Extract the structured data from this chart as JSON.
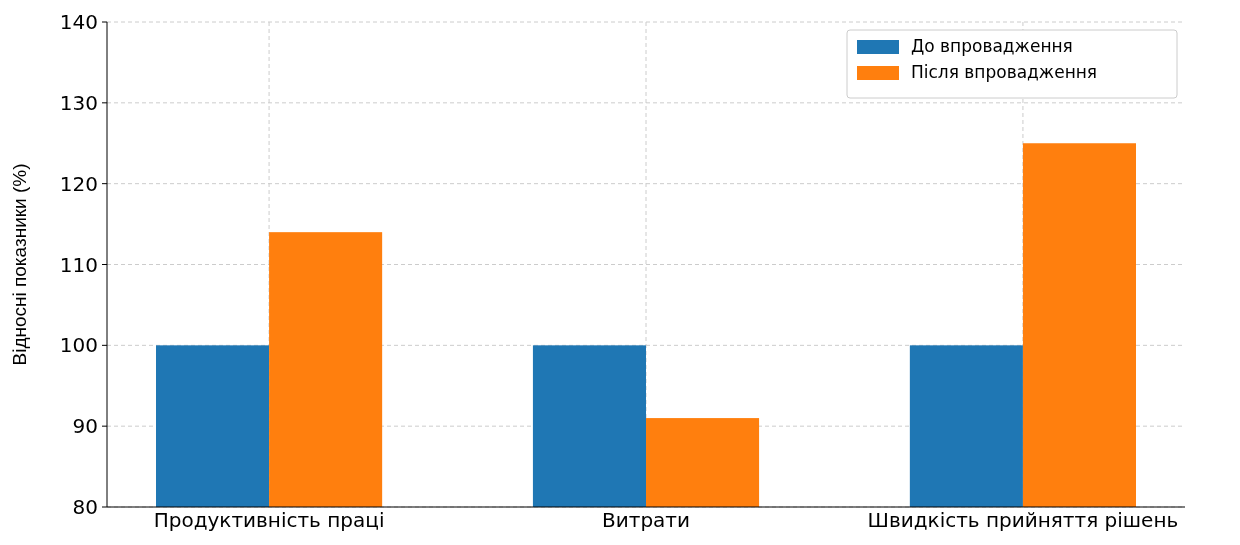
{
  "chart_data": {
    "type": "bar",
    "ylabel": "Відносні показники (%)",
    "categories": [
      "Продуктивність праці",
      "Витрати",
      "Швидкість прийняття рішень"
    ],
    "series": [
      {
        "name": "До впровадження",
        "color": "#1f77b4",
        "values": [
          100,
          100,
          100
        ]
      },
      {
        "name": "Після впровадження",
        "color": "#ff7f0e",
        "values": [
          114,
          91,
          125
        ]
      }
    ],
    "ylim": [
      80,
      140
    ],
    "yticks": [
      80,
      90,
      100,
      110,
      120,
      130,
      140
    ],
    "grid": true,
    "legend": "top right"
  }
}
